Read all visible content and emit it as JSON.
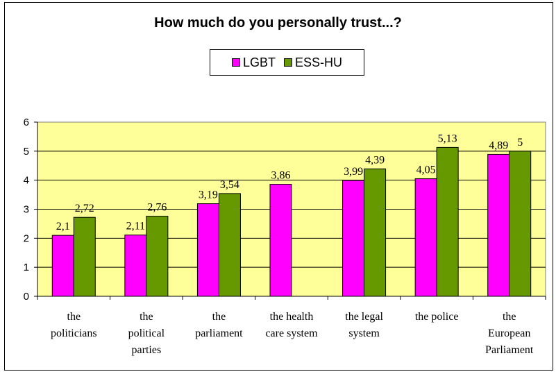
{
  "chart_data": {
    "type": "bar",
    "title": "How much do you personally trust...?",
    "categories": [
      [
        "the",
        "politicians"
      ],
      [
        "the",
        "political",
        "parties"
      ],
      [
        "the",
        "parliament"
      ],
      [
        "the health",
        "care system"
      ],
      [
        "the legal",
        "system"
      ],
      [
        "the police"
      ],
      [
        "the",
        "European",
        "Parliament"
      ]
    ],
    "series": [
      {
        "name": "LGBT",
        "color": "#ff00ff",
        "values": [
          2.1,
          2.11,
          3.19,
          3.86,
          3.99,
          4.05,
          4.89
        ],
        "labels": [
          "2,1",
          "2,11",
          "3,19",
          "3,86",
          "3,99",
          "4,05",
          "4,89"
        ]
      },
      {
        "name": "ESS-HU",
        "color": "#669900",
        "values": [
          2.72,
          2.76,
          3.54,
          null,
          4.39,
          5.13,
          5
        ],
        "labels": [
          "2,72",
          "2,76",
          "3,54",
          "",
          "4,39",
          "5,13",
          "5"
        ]
      }
    ],
    "ylim": [
      0,
      6
    ],
    "yticks": [
      0,
      1,
      2,
      3,
      4,
      5,
      6
    ],
    "plot_background": "#ffff99",
    "grid": true,
    "legend_position": "top-center"
  }
}
